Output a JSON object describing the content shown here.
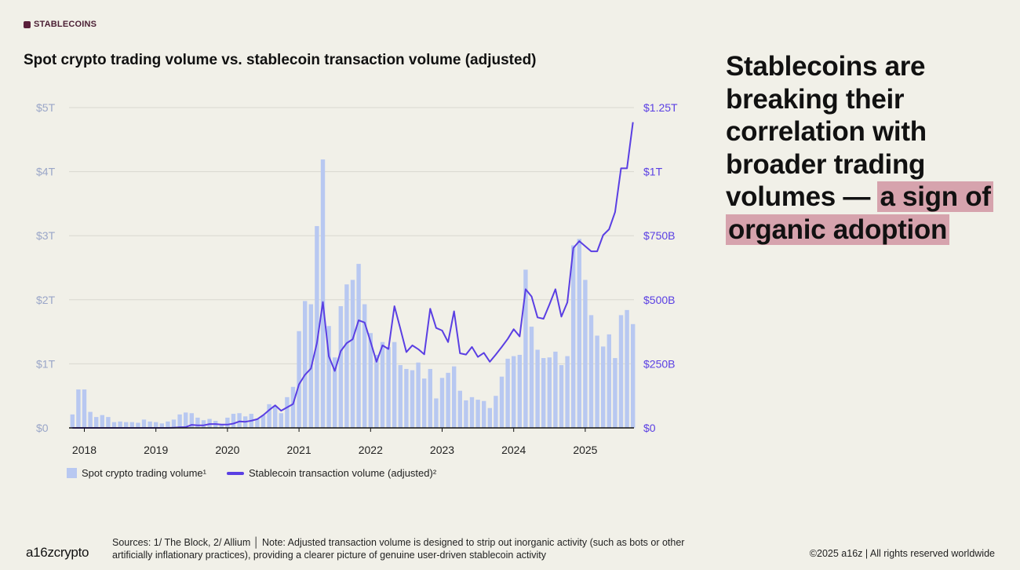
{
  "section_tag": "STABLECOINS",
  "colors": {
    "background": "#f1f0e8",
    "bars": "#b8c8f1",
    "line": "#5a3fe3",
    "left_axis_text": "#9aa6c8",
    "right_axis_text": "#5a3fe3",
    "highlight": "#d6a3ad",
    "tag": "#5a1f3a"
  },
  "headline": {
    "plain": "Stablecoins are breaking their correlation with broader trading volumes — ",
    "highlight": "a sign of organic adoption"
  },
  "legend": {
    "bars_label": "Spot crypto trading volume¹",
    "line_label": "Stablecoin transaction volume (adjusted)²"
  },
  "footer": {
    "logo": "a16zcrypto",
    "sources": "Sources: 1/ The Block, 2/ Allium  │  Note: Adjusted transaction volume is designed to strip out inorganic activity (such as bots or other artificially inflationary practices), providing a clearer picture of genuine user-driven stablecoin activity",
    "copyright": "©2025 a16z | All rights reserved worldwide"
  },
  "chart_data": {
    "type": "bar+line",
    "title": "Spot crypto trading volume vs. stablecoin transaction volume (adjusted)",
    "grid": "horizontal",
    "legend_placement": "bottom-left",
    "x_tick_labels": [
      "2018",
      "2019",
      "2020",
      "2021",
      "2022",
      "2023",
      "2024",
      "2025"
    ],
    "left_axis": {
      "unit": "USD trillions",
      "ylim": [
        0,
        5
      ],
      "tick_labels": [
        "$0",
        "$1T",
        "$2T",
        "$3T",
        "$4T",
        "$5T"
      ]
    },
    "right_axis": {
      "unit": "USD billions",
      "ylim": [
        0,
        1250
      ],
      "tick_labels": [
        "$0",
        "$250B",
        "$500B",
        "$750B",
        "$1T",
        "$1.25T"
      ]
    },
    "x": [
      "2017-11",
      "2017-12",
      "2018-01",
      "2018-02",
      "2018-03",
      "2018-04",
      "2018-05",
      "2018-06",
      "2018-07",
      "2018-08",
      "2018-09",
      "2018-10",
      "2018-11",
      "2018-12",
      "2019-01",
      "2019-02",
      "2019-03",
      "2019-04",
      "2019-05",
      "2019-06",
      "2019-07",
      "2019-08",
      "2019-09",
      "2019-10",
      "2019-11",
      "2019-12",
      "2020-01",
      "2020-02",
      "2020-03",
      "2020-04",
      "2020-05",
      "2020-06",
      "2020-07",
      "2020-08",
      "2020-09",
      "2020-10",
      "2020-11",
      "2020-12",
      "2021-01",
      "2021-02",
      "2021-03",
      "2021-04",
      "2021-05",
      "2021-06",
      "2021-07",
      "2021-08",
      "2021-09",
      "2021-10",
      "2021-11",
      "2021-12",
      "2022-01",
      "2022-02",
      "2022-03",
      "2022-04",
      "2022-05",
      "2022-06",
      "2022-07",
      "2022-08",
      "2022-09",
      "2022-10",
      "2022-11",
      "2022-12",
      "2023-01",
      "2023-02",
      "2023-03",
      "2023-04",
      "2023-05",
      "2023-06",
      "2023-07",
      "2023-08",
      "2023-09",
      "2023-10",
      "2023-11",
      "2023-12",
      "2024-01",
      "2024-02",
      "2024-03",
      "2024-04",
      "2024-05",
      "2024-06",
      "2024-07",
      "2024-08",
      "2024-09",
      "2024-10",
      "2024-11",
      "2024-12",
      "2025-01",
      "2025-02",
      "2025-03",
      "2025-04",
      "2025-05",
      "2025-06",
      "2025-07",
      "2025-08",
      "2025-09"
    ],
    "series": [
      {
        "name": "Spot crypto trading volume¹",
        "type": "bar",
        "axis": "left",
        "values": [
          0.21,
          0.6,
          0.6,
          0.25,
          0.17,
          0.2,
          0.17,
          0.09,
          0.1,
          0.09,
          0.09,
          0.08,
          0.13,
          0.1,
          0.09,
          0.07,
          0.1,
          0.13,
          0.21,
          0.24,
          0.23,
          0.16,
          0.12,
          0.14,
          0.11,
          0.06,
          0.16,
          0.22,
          0.23,
          0.18,
          0.22,
          0.14,
          0.2,
          0.37,
          0.34,
          0.23,
          0.48,
          0.64,
          1.51,
          1.98,
          1.93,
          3.15,
          4.19,
          1.59,
          1.1,
          1.9,
          2.24,
          2.31,
          2.56,
          1.93,
          1.48,
          1.14,
          1.34,
          1.26,
          1.34,
          0.98,
          0.92,
          0.9,
          1.02,
          0.77,
          0.92,
          0.46,
          0.78,
          0.86,
          0.96,
          0.58,
          0.43,
          0.48,
          0.44,
          0.42,
          0.31,
          0.5,
          0.8,
          1.08,
          1.12,
          1.14,
          2.47,
          1.58,
          1.22,
          1.09,
          1.1,
          1.19,
          0.98,
          1.12,
          2.85,
          2.95,
          2.31,
          1.76,
          1.44,
          1.27,
          1.46,
          1.09,
          1.76,
          1.84,
          1.62
        ]
      },
      {
        "name": "Stablecoin transaction volume (adjusted)²",
        "type": "line",
        "axis": "right",
        "values": [
          0,
          0,
          0,
          0,
          0,
          0,
          0,
          0,
          0,
          0,
          0,
          0,
          0,
          0,
          0,
          0,
          0,
          1,
          2,
          3,
          12,
          10,
          10,
          15,
          15,
          13,
          13,
          17,
          25,
          24,
          28,
          34,
          50,
          70,
          88,
          67,
          80,
          93,
          170,
          207,
          232,
          331,
          491,
          279,
          222,
          300,
          331,
          346,
          420,
          411,
          336,
          258,
          322,
          308,
          475,
          387,
          296,
          322,
          307,
          287,
          465,
          390,
          380,
          335,
          455,
          291,
          286,
          316,
          277,
          293,
          258,
          286,
          316,
          347,
          385,
          357,
          541,
          513,
          431,
          426,
          482,
          541,
          434,
          490,
          702,
          729,
          709,
          689,
          689,
          752,
          775,
          842,
          1013,
          1013,
          1193
        ]
      }
    ]
  }
}
